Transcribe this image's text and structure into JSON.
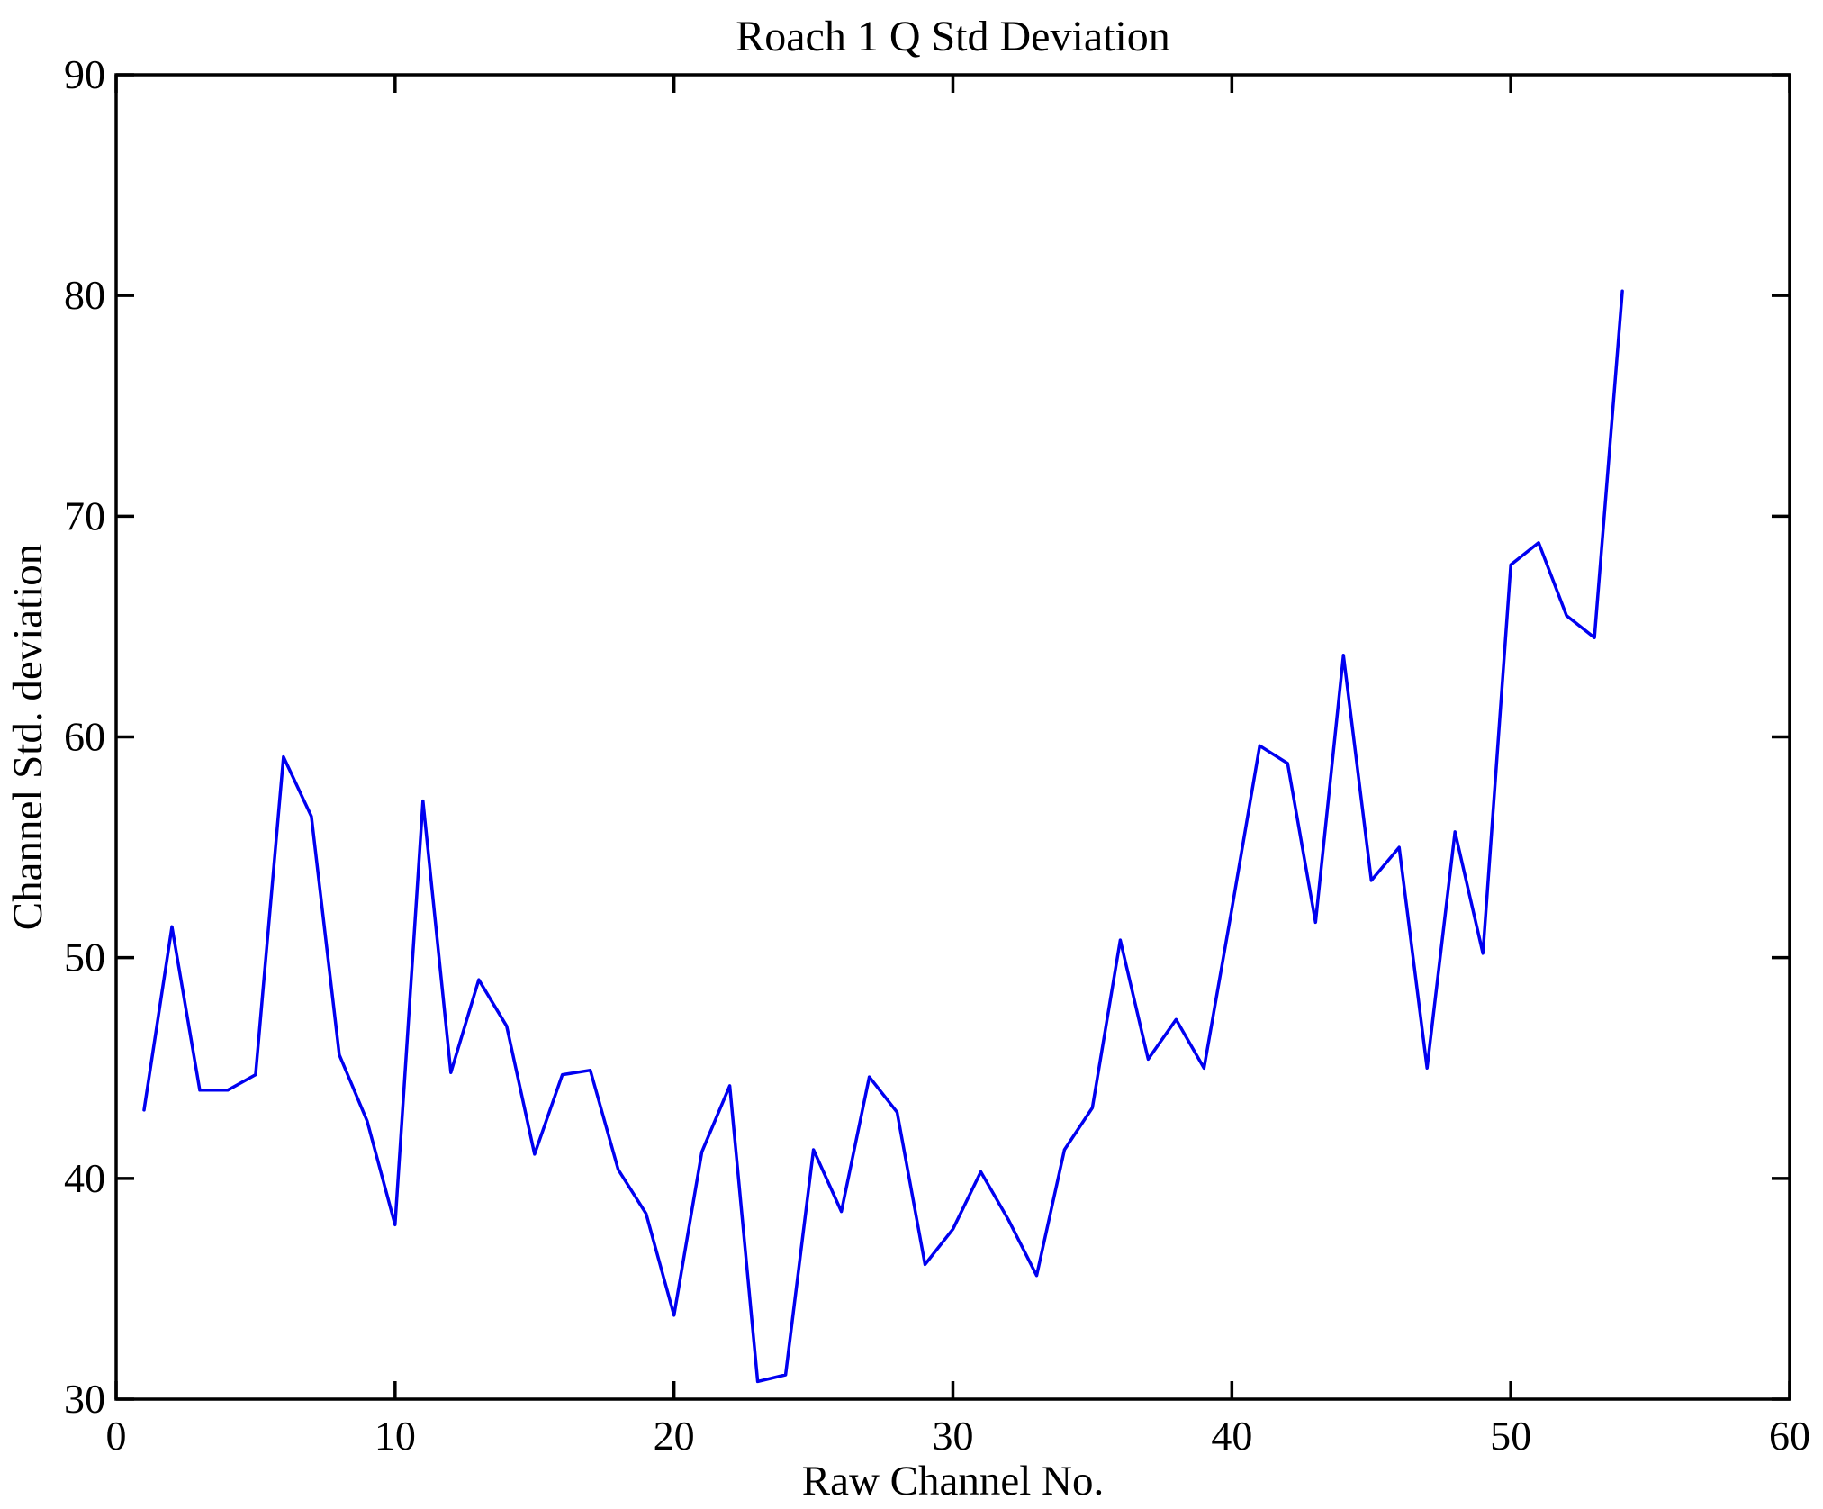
{
  "figure": {
    "background_color": "#ffffff",
    "axis_color": "#000000",
    "line_color": "#0000f0"
  },
  "chart_data": {
    "type": "line",
    "title": "Roach 1 Q Std Deviation",
    "xlabel": "Raw Channel No.",
    "ylabel": "Channel Std. deviation",
    "xlim": [
      0,
      60
    ],
    "ylim": [
      30,
      90
    ],
    "x_ticks": [
      0,
      10,
      20,
      30,
      40,
      50,
      60
    ],
    "y_ticks": [
      30,
      40,
      50,
      60,
      70,
      80,
      90
    ],
    "grid": false,
    "legend_position": "none",
    "series": [
      {
        "x": [
          1,
          2,
          3,
          4,
          5,
          6,
          7,
          8,
          9,
          10,
          11,
          12,
          13,
          14,
          15,
          16,
          17,
          18,
          19,
          20,
          21,
          22,
          23,
          24,
          25,
          26,
          27,
          28,
          29,
          30,
          31,
          32,
          33,
          34,
          35,
          36,
          37,
          38,
          39,
          40,
          41,
          42,
          43,
          44,
          45,
          46,
          47,
          48,
          49,
          50,
          51,
          52,
          53,
          54
        ],
        "y": [
          43.1,
          51.4,
          44.0,
          44.0,
          44.7,
          59.1,
          56.4,
          45.6,
          42.6,
          37.9,
          57.1,
          44.8,
          49.0,
          46.9,
          41.1,
          44.7,
          44.9,
          40.4,
          38.4,
          33.8,
          41.2,
          44.2,
          30.8,
          31.1,
          41.3,
          38.5,
          44.6,
          43.0,
          36.1,
          37.7,
          40.3,
          38.1,
          35.6,
          41.3,
          43.2,
          50.8,
          45.4,
          47.2,
          45.0,
          52.2,
          59.6,
          58.8,
          51.6,
          63.7,
          53.5,
          55.0,
          45.0,
          55.7,
          50.2,
          67.8,
          68.8,
          65.5,
          64.5,
          80.2
        ]
      }
    ]
  }
}
